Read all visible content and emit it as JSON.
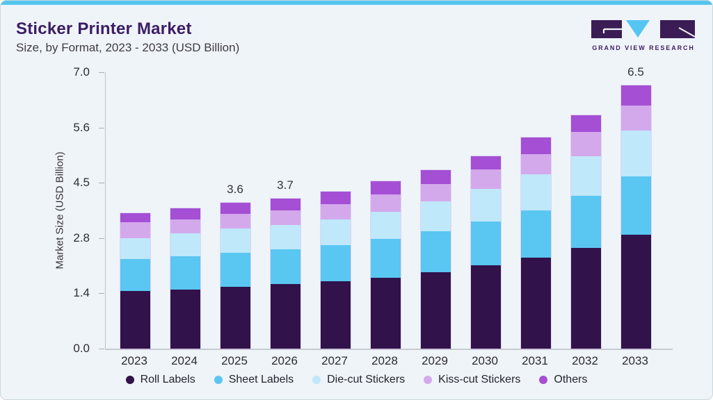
{
  "header": {
    "title": "Sticker Printer Market",
    "subtitle": "Size, by Format, 2023 - 2033 (USD Billion)"
  },
  "logo": {
    "text": "GRAND VIEW RESEARCH",
    "mark_colors": {
      "dark": "#3b1c55",
      "blue": "#55c6f2"
    }
  },
  "chart_data": {
    "type": "bar",
    "stacked": true,
    "title": "Sticker Printer Market Size, by Format, 2023 - 2033 (USD Billion)",
    "xlabel": "",
    "ylabel": "Market Size (USD Billion)",
    "ylim": [
      0.0,
      7.0
    ],
    "ytick_labels": [
      "7.0",
      "5.6",
      "4.5",
      "2.8",
      "1.4",
      "0.0"
    ],
    "grid": false,
    "legend_position": "bottom",
    "categories": [
      "2023",
      "2024",
      "2025",
      "2026",
      "2027",
      "2028",
      "2029",
      "2030",
      "2031",
      "2032",
      "2033"
    ],
    "series": [
      {
        "name": "Roll Labels",
        "color": "#31124a",
        "values": [
          1.42,
          1.46,
          1.52,
          1.59,
          1.66,
          1.75,
          1.88,
          2.06,
          2.24,
          2.48,
          2.81
        ]
      },
      {
        "name": "Sheet Labels",
        "color": "#5ac6f2",
        "values": [
          0.79,
          0.83,
          0.85,
          0.86,
          0.9,
          0.96,
          1.02,
          1.08,
          1.17,
          1.3,
          1.44
        ]
      },
      {
        "name": "Die-cut Stickers",
        "color": "#bfe8fa",
        "values": [
          0.52,
          0.56,
          0.6,
          0.6,
          0.63,
          0.67,
          0.73,
          0.81,
          0.9,
          0.98,
          1.13
        ]
      },
      {
        "name": "Kiss-cut Stickers",
        "color": "#d3a9ec",
        "values": [
          0.39,
          0.34,
          0.36,
          0.37,
          0.38,
          0.42,
          0.43,
          0.47,
          0.5,
          0.59,
          0.63
        ]
      },
      {
        "name": "Others",
        "color": "#a44fd4",
        "values": [
          0.22,
          0.27,
          0.27,
          0.28,
          0.3,
          0.33,
          0.34,
          0.34,
          0.41,
          0.42,
          0.49
        ]
      }
    ],
    "totals_estimated": [
      3.34,
      3.46,
      3.6,
      3.7,
      3.87,
      4.13,
      4.4,
      4.76,
      5.22,
      5.77,
      6.5
    ],
    "bar_total_labels": [
      "",
      "",
      "3.6",
      "3.7",
      "",
      "",
      "",
      "",
      "",
      "",
      "6.5"
    ]
  }
}
